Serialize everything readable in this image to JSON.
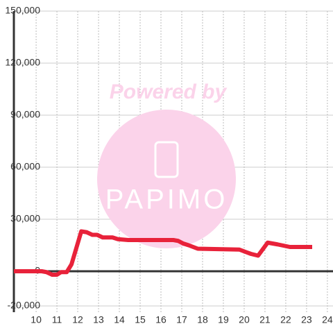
{
  "chart_data": {
    "type": "line",
    "watermark": {
      "top": "Powered by",
      "brand": "PAPIMO"
    },
    "x": [
      8.93,
      10.27,
      10.5,
      10.77,
      11,
      11.2,
      11.47,
      11.7,
      12.17,
      12.43,
      12.7,
      12.93,
      13.2,
      13.67,
      13.93,
      14.43,
      16.6,
      16.83,
      17.07,
      17.33,
      17.77,
      19.77,
      20.1,
      20.33,
      20.67,
      21.13,
      21.6,
      22.2,
      23.27
    ],
    "series": [
      {
        "color": "#e8223a",
        "values": [
          0,
          0,
          -500,
          -2000,
          -2000,
          -500,
          -500,
          4000,
          23000,
          22500,
          21000,
          21000,
          19500,
          19500,
          18500,
          18000,
          18000,
          17500,
          16000,
          15000,
          13000,
          12500,
          11000,
          10000,
          9000,
          16500,
          15500,
          14000,
          14000
        ]
      }
    ],
    "xlim": [
      8.93,
      24.27
    ],
    "ylim": [
      -20000,
      150000
    ],
    "xticks": [
      10,
      11,
      12,
      13,
      14,
      15,
      16,
      17,
      18,
      19,
      20,
      21,
      22,
      23,
      24
    ],
    "yticks": [
      {
        "value": -20000,
        "label": "-20,000"
      },
      0,
      {
        "value": 30000,
        "label": "30,000"
      },
      {
        "value": 60000,
        "label": "60,000"
      },
      {
        "value": 90000,
        "label": "90,000"
      },
      {
        "value": 120000,
        "label": "120,000"
      },
      {
        "value": 150000,
        "label": "150,000"
      }
    ],
    "grid": true
  }
}
